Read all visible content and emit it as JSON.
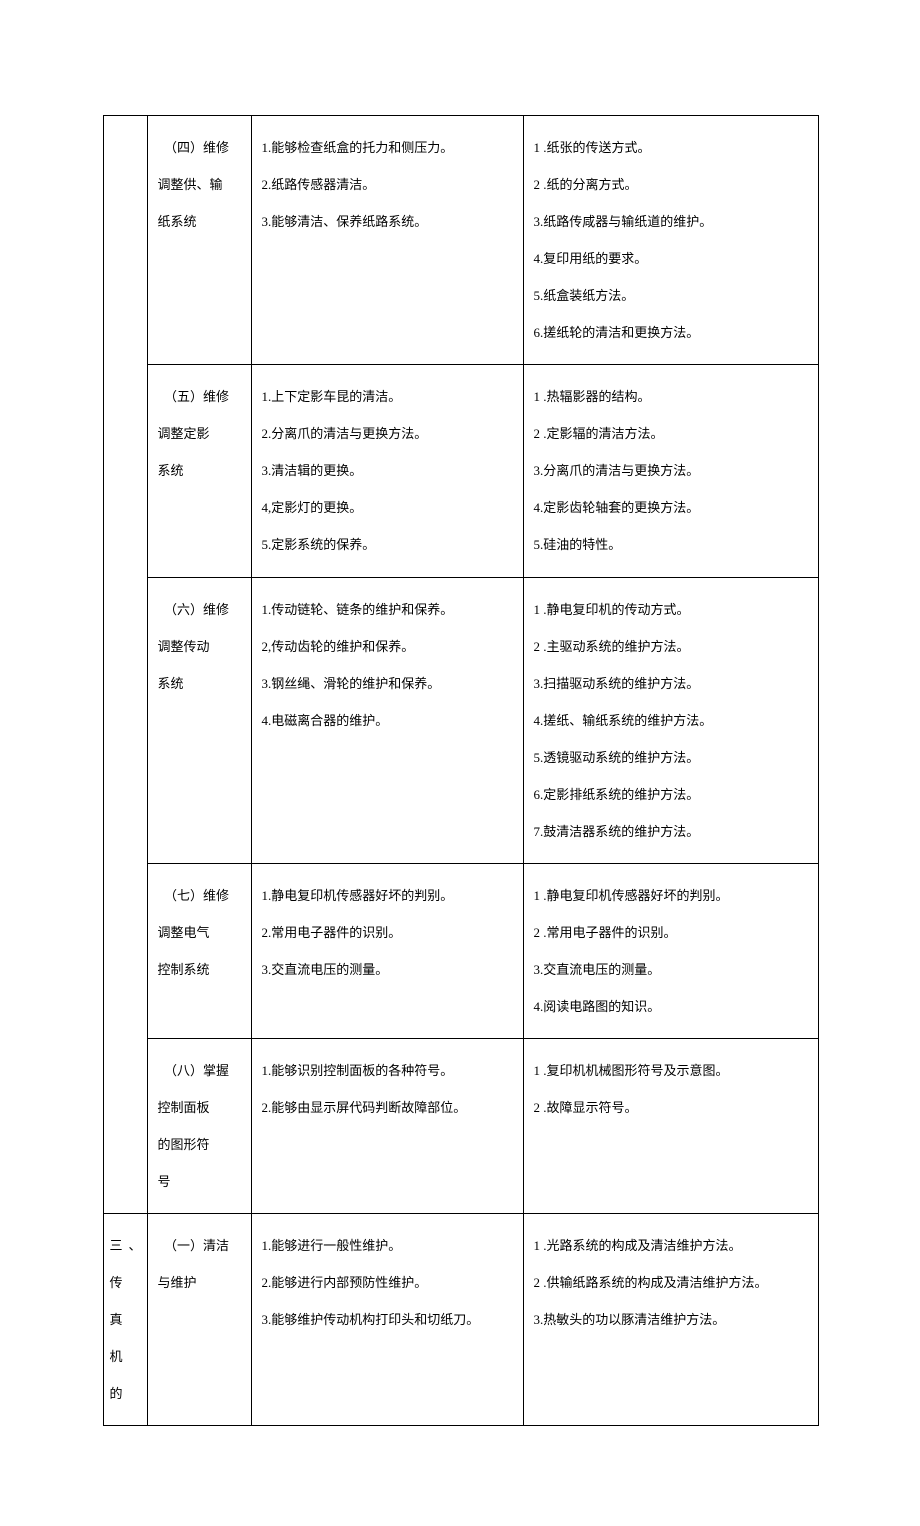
{
  "rows": [
    {
      "colA": null,
      "colB": [
        "　（四）维修",
        "调整供、输",
        "纸系统"
      ],
      "colC": [
        "1.能够检查纸盒的托力和侧压力。",
        "2.纸路传感器清洁。",
        "3.能够清洁、保养纸路系统。"
      ],
      "colD": [
        "1 .纸张的传送方式。",
        "2 .纸的分离方式。",
        "3.纸路传咸器与输纸道的维护。",
        "4.复印用纸的要求。",
        "5.纸盒装纸方法。",
        "6.搓纸轮的清洁和更换方法。"
      ]
    },
    {
      "colA": null,
      "colB": [
        "　（五）维修",
        "调整定影",
        "系统"
      ],
      "colC": [
        "1.上下定影车昆的清洁。",
        "2.分离爪的清洁与更换方法。",
        "3.清洁辑的更换。",
        "4,定影灯的更换。",
        "5.定影系统的保养。"
      ],
      "colD": [
        "1 .热辐影器的结构。",
        "2 .定影辐的清洁方法。",
        "3.分离爪的清洁与更换方法。",
        "4.定影齿轮轴套的更换方法。",
        "5.硅油的特性。"
      ]
    },
    {
      "colA": null,
      "colB": [
        "　（六）维修",
        "调整传动",
        "系统"
      ],
      "colC": [
        "1.传动链轮、链条的维护和保养。",
        "2,传动齿轮的维护和保养。",
        "3.钢丝绳、滑轮的维护和保养。",
        "4.电磁离合器的维护。"
      ],
      "colD": [
        "1 .静电复印机的传动方式。",
        "2 .主驱动系统的维护方法。",
        "3.扫描驱动系统的维护方法。",
        "4.搓纸、输纸系统的维护方法。",
        "5.透镜驱动系统的维护方法。",
        "6.定影排纸系统的维护方法。",
        "7.鼓清洁器系统的维护方法。"
      ]
    },
    {
      "colA": null,
      "colB": [
        "　（七）维修",
        "调整电气",
        "控制系统"
      ],
      "colC": [
        "1.静电复印机传感器好坏的判别。",
        "2.常用电子器件的识别。",
        "3.交直流电压的测量。"
      ],
      "colD": [
        "1 .静电复印机传感器好坏的判别。",
        "2 .常用电子器件的识别。",
        "3.交直流电压的测量。",
        "4.阅读电路图的知识。"
      ]
    },
    {
      "colA": null,
      "colB": [
        "　（八）掌握",
        "控制面板",
        "的图形符",
        "号"
      ],
      "colC": [
        "1.能够识别控制面板的各种符号。",
        "2.能够由显示屏代码判断故障部位。"
      ],
      "colD": [
        "1 .复印机机械图形符号及示意图。",
        "2 .故障显示符号。"
      ]
    },
    {
      "colA": [
        "三、",
        "传真",
        "机的"
      ],
      "colB": [
        "　（一）清洁",
        "与维护"
      ],
      "colC": [
        "1.能够进行一般性维护。",
        "2.能够进行内部预防性维护。",
        "3.能够维护传动机构打印头和切纸刀。"
      ],
      "colD": [
        "1 .光路系统的构成及清洁维护方法。",
        "2 .供输纸路系统的构成及清洁维护方法。",
        "3.热敏头的功以豚清洁维护方法。"
      ]
    }
  ]
}
